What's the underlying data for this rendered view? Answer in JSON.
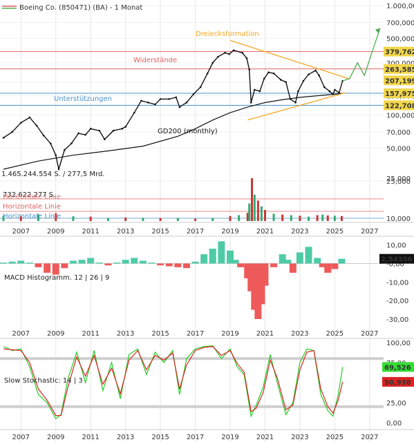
{
  "header": {
    "title": "Boeing Co. (850471) (BA) - 1 Monat"
  },
  "colors": {
    "candle_up": "#111111",
    "resistance": "#e06060",
    "support": "#4a90c8",
    "triangle": "#f5a623",
    "gd200": "#111111",
    "macd_pos": "#4ecba5",
    "macd_neg": "#ee5a5a",
    "stoch_k": "#22cc22",
    "stoch_d": "#dd2222",
    "projection": "#4caf50",
    "badge_bg": "#f2d64b",
    "badge_green": "#33dd33",
    "badge_red": "#dd2222"
  },
  "chart_data": [
    {
      "type": "line",
      "name": "price",
      "scale": "log",
      "ylim": [
        25,
        1000
      ],
      "xlim": [
        2005.8,
        2027.8
      ],
      "y_ticks": [
        25,
        50,
        70,
        100,
        150,
        200,
        300,
        500,
        700,
        1000
      ],
      "y_tick_labels": [
        "25,000",
        "50,000",
        "70,000",
        "100,000",
        "150,000",
        "200,000",
        "300,000",
        "500,000",
        "700,000",
        "1.000,000"
      ],
      "x_ticks": [
        2007,
        2009,
        2011,
        2013,
        2015,
        2017,
        2019,
        2021,
        2023,
        2025,
        2027
      ],
      "x_tick_labels": [
        "2007",
        "2009",
        "2011",
        "2013",
        "2015",
        "2017",
        "2019",
        "2021",
        "2023",
        "2025",
        "2027"
      ],
      "series": [
        {
          "key": "close",
          "x": [
            2006.0,
            2006.5,
            2007.0,
            2007.5,
            2007.9,
            2008.3,
            2008.7,
            2009.0,
            2009.17,
            2009.5,
            2009.9,
            2010.3,
            2010.7,
            2011.0,
            2011.5,
            2011.8,
            2012.3,
            2012.8,
            2013.0,
            2013.5,
            2013.9,
            2014.3,
            2014.7,
            2015.0,
            2015.5,
            2015.9,
            2016.1,
            2016.5,
            2016.9,
            2017.3,
            2017.7,
            2018.0,
            2018.3,
            2018.7,
            2018.95,
            2019.2,
            2019.7,
            2019.95,
            2020.1,
            2020.2,
            2020.4,
            2020.7,
            2020.95,
            2021.2,
            2021.5,
            2021.9,
            2022.2,
            2022.45,
            2022.75,
            2022.9,
            2023.2,
            2023.5,
            2023.9,
            2024.1,
            2024.4,
            2024.7,
            2024.9,
            2025.0,
            2025.25,
            2025.45
          ],
          "y": [
            62,
            70,
            85,
            95,
            80,
            65,
            55,
            43,
            32,
            48,
            55,
            68,
            66,
            75,
            72,
            60,
            72,
            75,
            78,
            105,
            135,
            130,
            125,
            140,
            140,
            145,
            118,
            130,
            155,
            180,
            240,
            300,
            340,
            370,
            360,
            390,
            370,
            330,
            260,
            130,
            170,
            165,
            215,
            245,
            240,
            210,
            200,
            140,
            130,
            165,
            205,
            235,
            255,
            230,
            180,
            165,
            155,
            170,
            160,
            205
          ]
        },
        {
          "key": "gd200",
          "label": "GD200 (monthly)",
          "x": [
            2006.0,
            2008.0,
            2010.0,
            2012.0,
            2014.0,
            2016.0,
            2017.0,
            2018.0,
            2019.0,
            2020.0,
            2021.0,
            2022.0,
            2023.0,
            2024.0,
            2025.0,
            2025.5
          ],
          "y": [
            32,
            38,
            43,
            47,
            52,
            64,
            75,
            90,
            105,
            118,
            130,
            138,
            145,
            150,
            155,
            158
          ]
        },
        {
          "key": "triangle_upper",
          "label": "Dreiecksformation",
          "x": [
            2019.0,
            2025.85
          ],
          "y": [
            480,
            214
          ]
        },
        {
          "key": "triangle_lower",
          "x": [
            2020.0,
            2025.6
          ],
          "y": [
            90,
            160
          ]
        },
        {
          "key": "projection",
          "x": [
            2025.45,
            2025.85,
            2026.3,
            2026.7,
            2027.1,
            2027.6
          ],
          "y": [
            205,
            215,
            300,
            230,
            360,
            620
          ]
        }
      ],
      "horizontal_lines": [
        {
          "value": 379.762,
          "label": "379,762",
          "group": "Widerstände",
          "color": "#e06060"
        },
        {
          "value": 263.585,
          "label": "263,585",
          "group": "Widerstände",
          "color": "#e06060"
        },
        {
          "value": 157.975,
          "label": "157,975",
          "group": "Unterstützungen",
          "color": "#4a90c8"
        },
        {
          "value": 122.708,
          "label": "122,708",
          "group": "Unterstützungen",
          "color": "#4a90c8"
        }
      ],
      "last_value": {
        "value": 207.199,
        "label": "207,199"
      },
      "annotations": [
        "Dreiecksformation",
        "Widerstände",
        "Unterstützungen",
        "GD200 (monthly)"
      ]
    },
    {
      "type": "bar",
      "name": "volume",
      "ylim": [
        0,
        1465244554
      ],
      "volume_label": "1.465.244.554 S. / 277,5 Mrd.",
      "secondary_label": "732.622.277 S.",
      "y_tick_labels": [
        "25,000",
        "10,000"
      ],
      "legend": [
        "Horizontale Linie",
        "Horizontale Linie",
        "Horizontale Linie"
      ],
      "x": [
        2006.0,
        2007.0,
        2008.0,
        2009.0,
        2010.0,
        2011.0,
        2012.0,
        2013.0,
        2014.0,
        2015.0,
        2016.0,
        2017.0,
        2018.0,
        2019.0,
        2019.5,
        2020.0,
        2020.1,
        2020.25,
        2020.4,
        2020.6,
        2020.8,
        2021.0,
        2021.5,
        2022.0,
        2022.5,
        2023.0,
        2023.5,
        2024.0,
        2024.3,
        2024.6,
        2025.0,
        2025.4
      ],
      "values": [
        180000000,
        170000000,
        230000000,
        270000000,
        160000000,
        150000000,
        110000000,
        120000000,
        110000000,
        100000000,
        110000000,
        80000000,
        110000000,
        170000000,
        200000000,
        280000000,
        600000000,
        1465244554,
        900000000,
        700000000,
        500000000,
        380000000,
        250000000,
        220000000,
        200000000,
        180000000,
        150000000,
        200000000,
        220000000,
        190000000,
        180000000,
        170000000
      ]
    },
    {
      "type": "bar",
      "name": "MACD Histogramm. 12 | 26 | 9",
      "title": "MACD Histogramm. 12 | 26 | 9",
      "ylim": [
        -33,
        14
      ],
      "y_ticks": [
        10,
        0,
        -10,
        -20,
        -30
      ],
      "y_tick_labels": [
        "10,00",
        "-0,00",
        "-10,00",
        "-20,00",
        "-30,00"
      ],
      "x": [
        2006.0,
        2006.5,
        2007.0,
        2007.5,
        2008.0,
        2008.5,
        2009.0,
        2009.5,
        2010.0,
        2010.5,
        2011.0,
        2011.5,
        2012.0,
        2012.5,
        2013.0,
        2013.5,
        2014.0,
        2014.5,
        2015.0,
        2015.5,
        2016.0,
        2016.5,
        2017.0,
        2017.5,
        2018.0,
        2018.5,
        2019.0,
        2019.3,
        2019.6,
        2020.0,
        2020.2,
        2020.4,
        2020.6,
        2020.8,
        2021.0,
        2021.5,
        2022.0,
        2022.3,
        2022.6,
        2023.0,
        2023.5,
        2024.0,
        2024.3,
        2024.6,
        2025.0,
        2025.4
      ],
      "values": [
        0.5,
        1.0,
        1.5,
        0.5,
        -2.0,
        -5.0,
        -6.0,
        -2.5,
        1.5,
        2.0,
        3.0,
        0.5,
        -1.0,
        0.5,
        2.0,
        3.0,
        1.5,
        0.5,
        -1.0,
        -1.5,
        -2.0,
        -2.5,
        1.0,
        5.0,
        8.0,
        12.0,
        7.0,
        2.0,
        -2.0,
        -8.0,
        -15.0,
        -25.0,
        -30.0,
        -22.0,
        -12.0,
        -2.0,
        5.0,
        2.0,
        -5.0,
        6.0,
        9.0,
        3.0,
        -2.0,
        -5.0,
        -3.0,
        2.54356
      ],
      "last_value": {
        "value": 2.54356,
        "label": "2,54356"
      }
    },
    {
      "type": "line",
      "name": "Slow Stochastic: 14 | 3",
      "title": "Slow Stochastic: 14 | 3",
      "ylim": [
        0,
        100
      ],
      "y_ticks": [
        100,
        75,
        50,
        25,
        0
      ],
      "y_tick_labels": [
        "100,00",
        "75,00",
        "50,00",
        "25,00",
        "0,00"
      ],
      "bands": [
        80,
        20
      ],
      "series": [
        {
          "key": "k",
          "x": [
            2006.0,
            2006.5,
            2007.0,
            2007.5,
            2008.0,
            2008.5,
            2009.0,
            2009.3,
            2009.7,
            2010.2,
            2010.7,
            2011.2,
            2011.7,
            2012.2,
            2012.7,
            2013.2,
            2013.7,
            2014.2,
            2014.7,
            2015.2,
            2015.7,
            2016.1,
            2016.5,
            2017.0,
            2017.5,
            2018.0,
            2018.5,
            2019.0,
            2019.4,
            2019.8,
            2020.2,
            2020.5,
            2020.9,
            2021.3,
            2021.7,
            2022.2,
            2022.6,
            2023.0,
            2023.4,
            2023.8,
            2024.2,
            2024.6,
            2024.9,
            2025.2,
            2025.45
          ],
          "y": [
            95,
            90,
            92,
            70,
            35,
            25,
            5,
            10,
            55,
            88,
            50,
            90,
            40,
            75,
            30,
            85,
            92,
            60,
            88,
            75,
            90,
            35,
            80,
            92,
            95,
            96,
            80,
            92,
            70,
            60,
            8,
            22,
            45,
            85,
            50,
            10,
            25,
            75,
            92,
            90,
            35,
            15,
            8,
            35,
            69.526
          ]
        },
        {
          "key": "d",
          "x": [
            2006.0,
            2006.5,
            2007.0,
            2007.5,
            2008.0,
            2008.5,
            2009.0,
            2009.3,
            2009.7,
            2010.2,
            2010.7,
            2011.2,
            2011.7,
            2012.2,
            2012.7,
            2013.2,
            2013.7,
            2014.2,
            2014.7,
            2015.2,
            2015.7,
            2016.1,
            2016.5,
            2017.0,
            2017.5,
            2018.0,
            2018.5,
            2019.0,
            2019.4,
            2019.8,
            2020.2,
            2020.5,
            2020.9,
            2021.3,
            2021.7,
            2022.2,
            2022.6,
            2023.0,
            2023.4,
            2023.8,
            2024.2,
            2024.6,
            2024.9,
            2025.2,
            2025.45
          ],
          "y": [
            92,
            91,
            90,
            75,
            42,
            28,
            9,
            9,
            45,
            82,
            58,
            84,
            48,
            68,
            36,
            78,
            90,
            66,
            84,
            78,
            87,
            42,
            72,
            90,
            94,
            95,
            84,
            90,
            74,
            63,
            14,
            18,
            38,
            78,
            56,
            16,
            22,
            66,
            88,
            90,
            42,
            20,
            12,
            28,
            50.938
          ]
        }
      ],
      "last_values": [
        {
          "value": 69.526,
          "label": "69,526"
        },
        {
          "value": 50.938,
          "label": "50,938"
        }
      ]
    }
  ]
}
